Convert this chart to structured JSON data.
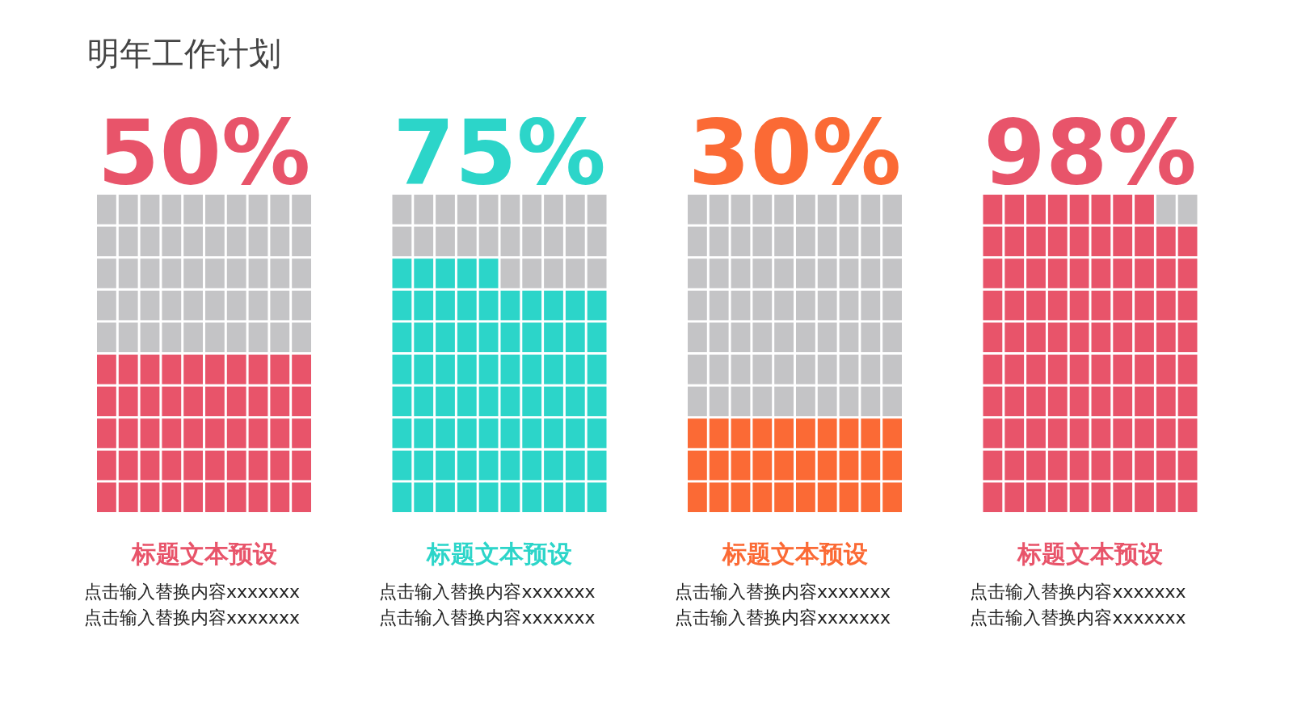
{
  "chart_data": [
    {
      "type": "other",
      "title": "明年工作计划"
    },
    {
      "type": "other",
      "title": "标题文本预设",
      "values": [
        50
      ],
      "value_labels": [
        "50%"
      ],
      "colors": [
        "#e8546a"
      ],
      "annotations": [
        "点击输入替换内容xxxxxxx",
        "点击输入替换内容xxxxxxx"
      ]
    },
    {
      "type": "other",
      "title": "标题文本预设",
      "values": [
        75
      ],
      "value_labels": [
        "75%"
      ],
      "colors": [
        "#2cd5c9"
      ],
      "annotations": [
        "点击输入替换内容xxxxxxx",
        "点击输入替换内容xxxxxxx"
      ]
    },
    {
      "type": "other",
      "title": "标题文本预设",
      "values": [
        30
      ],
      "value_labels": [
        "30%"
      ],
      "colors": [
        "#fb6a35"
      ],
      "annotations": [
        "点击输入替换内容xxxxxxx",
        "点击输入替换内容xxxxxxx"
      ]
    },
    {
      "type": "other",
      "title": "标题文本预设",
      "values": [
        98
      ],
      "value_labels": [
        "98%"
      ],
      "colors": [
        "#e8546a"
      ],
      "annotations": [
        "点击输入替换内容xxxxxxx",
        "点击输入替换内容xxxxxxx"
      ]
    }
  ]
}
